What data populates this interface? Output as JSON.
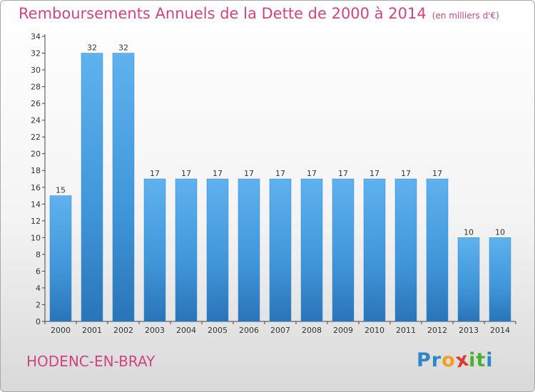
{
  "chart_data": {
    "type": "bar",
    "title": "Remboursements Annuels de la Dette de 2000 à 2014",
    "subtitle": "(en milliers d'€)",
    "categories": [
      "2000",
      "2001",
      "2002",
      "2003",
      "2004",
      "2005",
      "2006",
      "2007",
      "2008",
      "2009",
      "2010",
      "2011",
      "2012",
      "2013",
      "2014"
    ],
    "values": [
      15,
      32,
      32,
      17,
      17,
      17,
      17,
      17,
      17,
      17,
      17,
      17,
      17,
      10,
      10
    ],
    "ylim": [
      0,
      34
    ],
    "yticks": [
      0,
      2,
      4,
      6,
      8,
      10,
      12,
      14,
      16,
      18,
      20,
      22,
      24,
      26,
      28,
      30,
      32,
      34
    ],
    "xlabel": "",
    "ylabel": "",
    "grid": false,
    "bar_color": "#4a9fe0"
  },
  "town": "HODENC-EN-BRAY",
  "logo": {
    "letters": [
      "P",
      "r",
      "o",
      "x",
      "i",
      "t",
      "i"
    ],
    "colors": [
      "#2e86c8",
      "#2e86c8",
      "#f0a020",
      "#e03a2e",
      "#4caf2e",
      "#4caf2e",
      "#2e86c8"
    ]
  },
  "colors": {
    "accent": "#d0457f",
    "axis": "#444444"
  }
}
